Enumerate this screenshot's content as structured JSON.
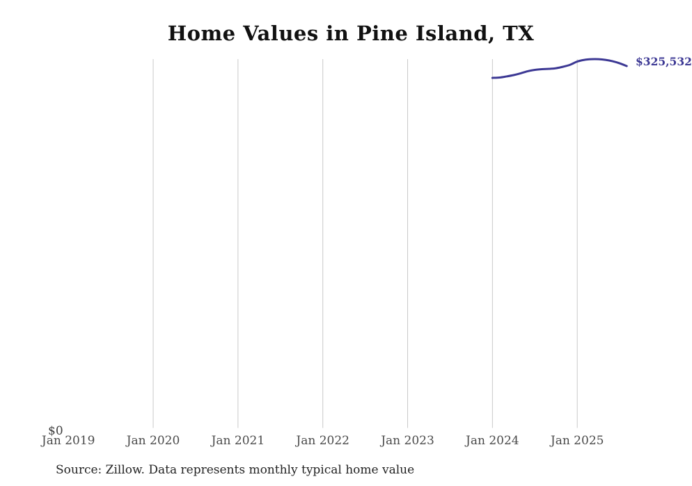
{
  "chart": {
    "title": "Home Values in Pine Island, TX",
    "y_zero_label": "$0",
    "end_label": "$325,532",
    "source": "Source: Zillow. Data represents monthly typical home value",
    "line_color": "#3c3894",
    "gridline_color": "#c9c9c9",
    "tick_label_color": "#4a4a4a"
  },
  "chart_data": {
    "type": "line",
    "title": "Home Values in Pine Island, TX",
    "xlabel": "",
    "ylabel": "",
    "x_tick_labels": [
      "Jan 2019",
      "Jan 2020",
      "Jan 2021",
      "Jan 2022",
      "Jan 2023",
      "Jan 2024",
      "Jan 2025"
    ],
    "y_tick_labels": [
      "$0"
    ],
    "grid": "vertical-only",
    "legend": "none",
    "ylim": [
      0,
      340000
    ],
    "x": [
      "Jan 2024",
      "Feb 2024",
      "Mar 2024",
      "Apr 2024",
      "May 2024",
      "Jun 2024",
      "Jul 2024",
      "Aug 2024",
      "Sep 2024",
      "Oct 2024",
      "Nov 2024",
      "Dec 2024",
      "Jan 2025",
      "Feb 2025",
      "Mar 2025",
      "Apr 2025",
      "May 2025",
      "Jun 2025",
      "Jul 2025",
      "Aug 2025"
    ],
    "series": [
      {
        "name": "Monthly typical home value",
        "values": [
          314900,
          315200,
          316200,
          317400,
          319000,
          320900,
          322100,
          322700,
          323000,
          323600,
          324900,
          326700,
          329600,
          331100,
          331700,
          331700,
          331100,
          329900,
          328000,
          325532
        ]
      }
    ],
    "end_label": "$325,532",
    "source": "Source: Zillow. Data represents monthly typical home value"
  }
}
